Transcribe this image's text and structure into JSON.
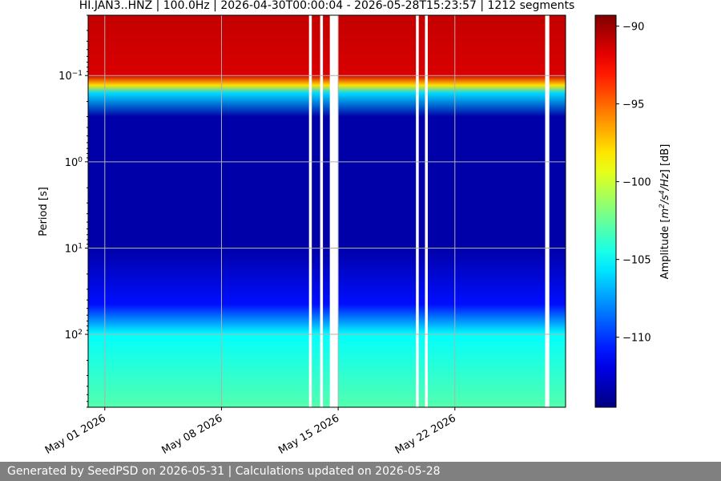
{
  "chart_data": {
    "type": "heatmap",
    "title": "HI.JAN3..HNZ | 100.0Hz | 2026-04-30T00:00:04 - 2026-05-28T15:23:57 | 1212 segments",
    "ylabel": "Period [s]",
    "yscale": "log",
    "yaxis_inverted": true,
    "ylim": [
      0.02,
      700
    ],
    "y_ticks": [
      {
        "value": 0.1,
        "base": "10",
        "exp": "−1"
      },
      {
        "value": 1,
        "base": "10",
        "exp": "0"
      },
      {
        "value": 10,
        "base": "10",
        "exp": "1"
      },
      {
        "value": 100,
        "base": "10",
        "exp": "2"
      }
    ],
    "xlim": [
      "2026-04-30T00:00:04",
      "2026-05-28T15:23:57"
    ],
    "x_ticks": [
      {
        "value": "2026-05-01",
        "label": "May 01 2026"
      },
      {
        "value": "2026-05-08",
        "label": "May 08 2026"
      },
      {
        "value": "2026-05-15",
        "label": "May 15 2026"
      },
      {
        "value": "2026-05-22",
        "label": "May 22 2026"
      }
    ],
    "grid": true,
    "segments": 1212,
    "data_gaps": [
      [
        "2026-05-13T06:00",
        "2026-05-13T10:00"
      ],
      [
        "2026-05-13T22:00",
        "2026-05-14T02:00"
      ],
      [
        "2026-05-14T12:00",
        "2026-05-15T00:00"
      ],
      [
        "2026-05-19T16:00",
        "2026-05-19T20:00"
      ],
      [
        "2026-05-20T05:00",
        "2026-05-20T09:00"
      ],
      [
        "2026-05-27T10:00",
        "2026-05-27T16:00"
      ]
    ],
    "amplitude_profile": [
      {
        "period": 0.02,
        "db": -91
      },
      {
        "period": 0.1,
        "db": -91.5
      },
      {
        "period": 0.13,
        "db": -98
      },
      {
        "period": 0.16,
        "db": -106
      },
      {
        "period": 0.3,
        "db": -113.5
      },
      {
        "period": 10,
        "db": -113.5
      },
      {
        "period": 45,
        "db": -111
      },
      {
        "period": 100,
        "db": -105
      },
      {
        "period": 700,
        "db": -103
      }
    ],
    "colorbar": {
      "label_prefix": "Amplitude [",
      "label_unit_html": "m<tspan baseline-shift='super' font-size='9'>2</tspan>/s<tspan baseline-shift='super' font-size='9'>4</tspan>/Hz",
      "label_suffix": "] [dB]",
      "colormap": "jet",
      "vmin": -114.5,
      "vmax": -89.3,
      "ticks": [
        {
          "value": -90,
          "label": "−90"
        },
        {
          "value": -95,
          "label": "−95"
        },
        {
          "value": -100,
          "label": "−100"
        },
        {
          "value": -105,
          "label": "−105"
        },
        {
          "value": -110,
          "label": "−110"
        }
      ]
    }
  },
  "footer": {
    "text": "Generated by SeedPSD on 2026-05-31 | Calculations updated on 2026-05-28"
  }
}
